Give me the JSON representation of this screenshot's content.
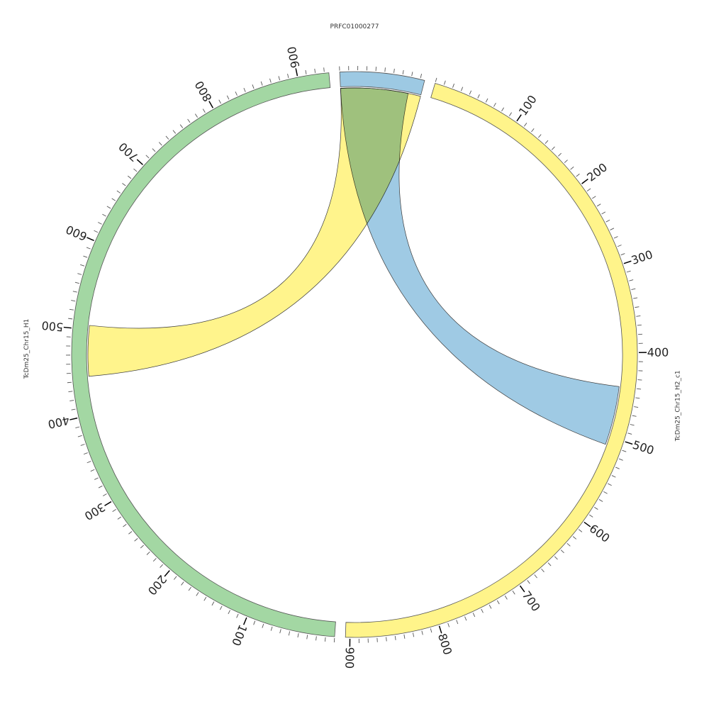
{
  "chart_data": {
    "type": "chord",
    "sequences": [
      {
        "name": "PRFC01000277",
        "length": 95,
        "color": "#9dc9e3",
        "labels": [],
        "label_side": "top"
      },
      {
        "name": "TcDm25_Chr15_H2_c1",
        "length": 905,
        "color": "#fff48a",
        "labels": [
          100,
          200,
          300,
          400,
          500,
          600,
          700,
          800,
          900
        ],
        "label_side": "right"
      },
      {
        "name": "TcDm25_Chr15_H1",
        "length": 935,
        "color": "#a3d7a3",
        "labels": [
          100,
          200,
          300,
          400,
          500,
          600,
          700,
          800,
          900
        ],
        "label_side": "left"
      }
    ],
    "links": [
      {
        "source": {
          "seq": "PRFC01000277",
          "start": 0,
          "end": 95
        },
        "target": {
          "seq": "TcDm25_Chr15_H1",
          "start": 445,
          "end": 505
        },
        "color": "#fff48a"
      },
      {
        "source": {
          "seq": "PRFC01000277",
          "start": 0,
          "end": 80
        },
        "target": {
          "seq": "TcDm25_Chr15_H2_c1",
          "start": 440,
          "end": 510
        },
        "color": "#9dc9e3"
      }
    ]
  }
}
